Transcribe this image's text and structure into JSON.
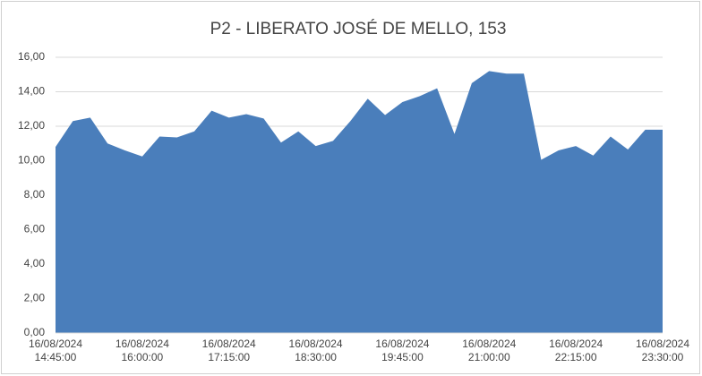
{
  "chart_data": {
    "type": "area",
    "title": "P2 - LIBERATO JOSÉ DE MELLO, 153",
    "categories": [
      "16/08/2024\n14:45:00",
      null,
      null,
      null,
      null,
      "16/08/2024\n16:00:00",
      null,
      null,
      null,
      null,
      "16/08/2024\n17:15:00",
      null,
      null,
      null,
      null,
      "16/08/2024\n18:30:00",
      null,
      null,
      null,
      null,
      "16/08/2024\n19:45:00",
      null,
      null,
      null,
      null,
      "16/08/2024\n21:00:00",
      null,
      null,
      null,
      null,
      "16/08/2024\n22:15:00",
      null,
      null,
      null,
      null,
      "16/08/2024\n23:30:00"
    ],
    "values": [
      10.8,
      12.3,
      12.5,
      11.0,
      10.6,
      10.25,
      11.4,
      11.35,
      11.7,
      12.9,
      12.5,
      12.7,
      12.45,
      11.05,
      11.7,
      10.85,
      11.15,
      12.3,
      13.6,
      12.65,
      13.4,
      13.75,
      14.2,
      11.55,
      14.5,
      15.2,
      15.05,
      15.05,
      10.05,
      10.6,
      10.85,
      10.3,
      11.4,
      10.65,
      11.8,
      11.8
    ],
    "color": "#4a7ebb",
    "ylim": [
      0,
      16
    ],
    "yticks": [
      {
        "value": 0,
        "label": "0,00"
      },
      {
        "value": 2,
        "label": "2,00"
      },
      {
        "value": 4,
        "label": "4,00"
      },
      {
        "value": 6,
        "label": "6,00"
      },
      {
        "value": 8,
        "label": "8,00"
      },
      {
        "value": 10,
        "label": "10,00"
      },
      {
        "value": 12,
        "label": "12,00"
      },
      {
        "value": 14,
        "label": "14,00"
      },
      {
        "value": 16,
        "label": "16,00"
      }
    ],
    "grid": true
  }
}
